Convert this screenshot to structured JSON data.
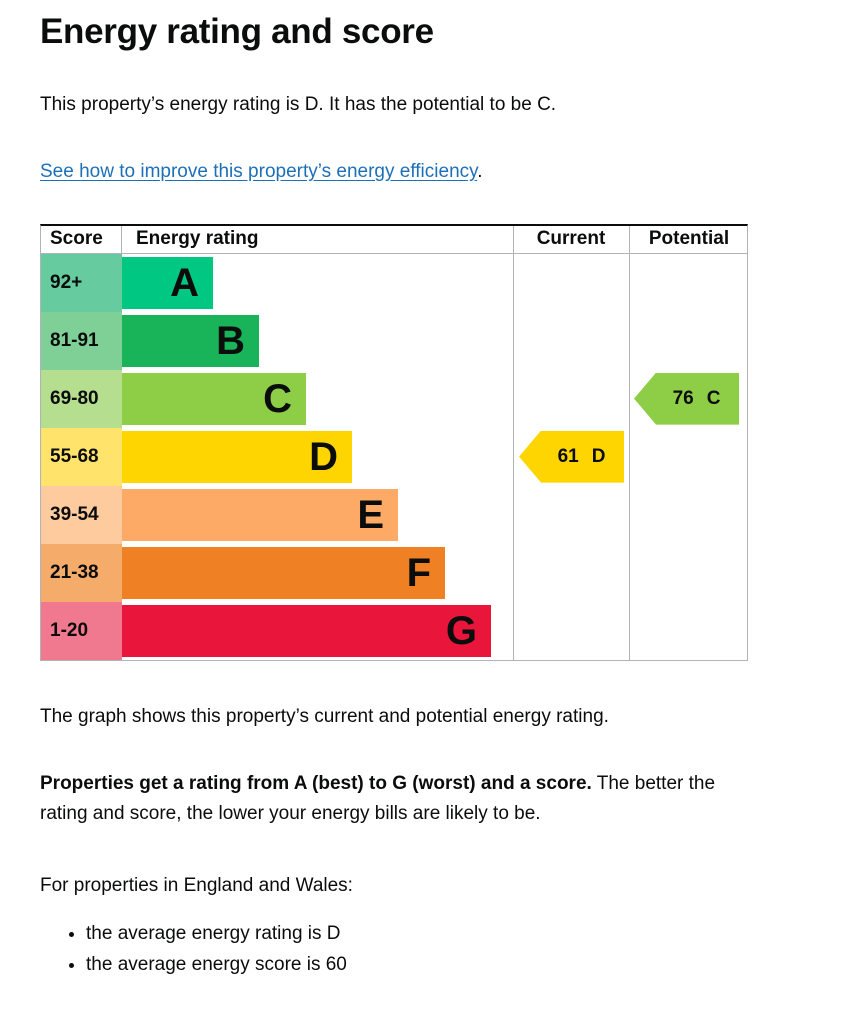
{
  "page": {
    "title": "Energy rating and score",
    "intro": "This property’s energy rating is D. It has the potential to be C.",
    "improve_link": "See how to improve this property’s energy efficiency",
    "improve_link_suffix": ".",
    "graph_caption": "The graph shows this property’s current and potential energy rating.",
    "rating_note_bold": "Properties get a rating from A (best) to G (worst) and a score.",
    "rating_note_rest": "The better the rating and score, the lower your energy bills are likely to be.",
    "region_heading": "For properties in England and Wales:",
    "region_bullets": [
      "the average energy rating is D",
      "the average energy score is 60"
    ]
  },
  "chart_data": {
    "type": "bar",
    "title": "Energy rating and score",
    "headers": [
      "Score",
      "Energy rating",
      "Current",
      "Potential"
    ],
    "categories": [
      "A",
      "B",
      "C",
      "D",
      "E",
      "F",
      "G"
    ],
    "score_ranges": [
      "92+",
      "81-91",
      "69-80",
      "55-68",
      "39-54",
      "21-38",
      "1-20"
    ],
    "band_colors": [
      "#00c781",
      "#19b459",
      "#8dce46",
      "#ffd500",
      "#fcaa65",
      "#ef8023",
      "#e9153b"
    ],
    "band_light_colors": [
      "#66cb9e",
      "#7fd096",
      "#b5df8e",
      "#ffe36a",
      "#fdcb9d",
      "#f5ab69",
      "#f0798f"
    ],
    "grid": false,
    "legend_position": "none",
    "current": {
      "score": "61",
      "rating": "D",
      "band_index": 3,
      "arrow_color": "#ffd500"
    },
    "potential": {
      "score": "76",
      "rating": "C",
      "band_index": 2,
      "arrow_color": "#8dce46"
    }
  },
  "theme": {
    "text_color": "#0b0c0c",
    "link_color": "#1d70b8",
    "border_color": "#b1b4b6"
  }
}
